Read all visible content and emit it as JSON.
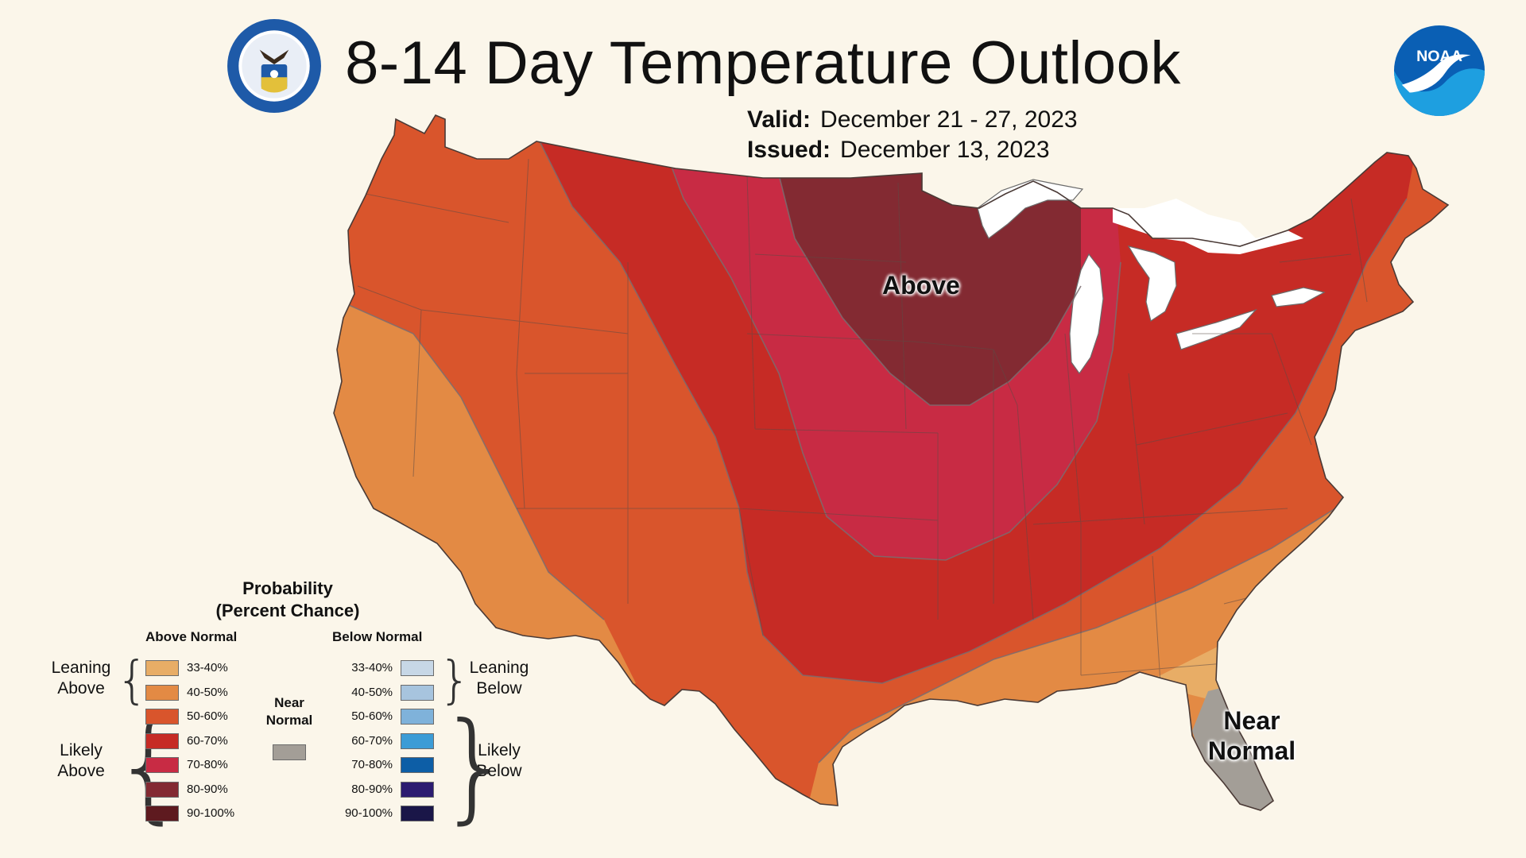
{
  "title": "8-14 Day Temperature Outlook",
  "valid_label": "Valid:",
  "valid_value": "December 21 - 27, 2023",
  "issued_label": "Issued:",
  "issued_value": "December 13, 2023",
  "logos": {
    "left": "doc-seal-icon",
    "right": "noaa-logo-icon",
    "noaa_text": "NOAA"
  },
  "map": {
    "labels": {
      "above": "Above",
      "near_1": "Near",
      "near_2": "Normal"
    },
    "colors": {
      "above_33_40": "#e9a75c",
      "above_40_50": "#e38a44",
      "above_50_60": "#d9552c",
      "above_60_70": "#c62b25",
      "above_70_80": "#c82b44",
      "above_80_90": "#832a32",
      "near_normal": "#a39e97",
      "water_lakes": "#ffffff"
    }
  },
  "legend": {
    "title_1": "Probability",
    "title_2": "(Percent Chance)",
    "above_header": "Above Normal",
    "below_header": "Below Normal",
    "leaning_above": [
      "Leaning",
      "Above"
    ],
    "likely_above": [
      "Likely",
      "Above"
    ],
    "leaning_below": [
      "Leaning",
      "Below"
    ],
    "likely_below": [
      "Likely",
      "Below"
    ],
    "near_normal": [
      "Near",
      "Normal"
    ],
    "above": [
      {
        "label": "33-40%",
        "color": "#e8ad66"
      },
      {
        "label": "40-50%",
        "color": "#e38a44"
      },
      {
        "label": "50-60%",
        "color": "#d9552c"
      },
      {
        "label": "60-70%",
        "color": "#c62b25"
      },
      {
        "label": "70-80%",
        "color": "#c82b44"
      },
      {
        "label": "80-90%",
        "color": "#832a32"
      },
      {
        "label": "90-100%",
        "color": "#5e1a1f"
      }
    ],
    "below": [
      {
        "label": "33-40%",
        "color": "#c7d7e6"
      },
      {
        "label": "40-50%",
        "color": "#a7c4de"
      },
      {
        "label": "50-60%",
        "color": "#7fb2da"
      },
      {
        "label": "60-70%",
        "color": "#3c9cd6"
      },
      {
        "label": "70-80%",
        "color": "#0d5ea6"
      },
      {
        "label": "80-90%",
        "color": "#2c1c70"
      },
      {
        "label": "90-100%",
        "color": "#1a1648"
      }
    ],
    "near_color": "#a39e97"
  }
}
